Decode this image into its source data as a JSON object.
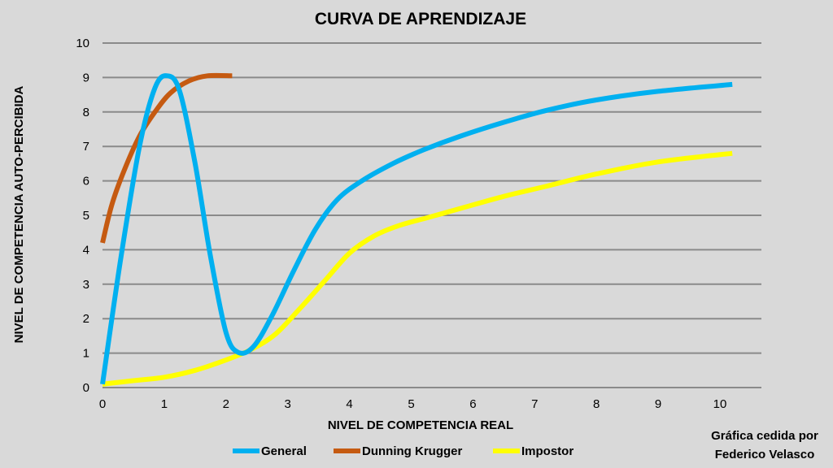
{
  "chart_data": {
    "type": "line",
    "title": "CURVA DE APRENDIZAJE",
    "xlabel": "NIVEL DE COMPETENCIA REAL",
    "ylabel": "NIVEL DE COMPETENCIA AUTO-PERCIBIDA",
    "xlim": [
      0,
      10.7
    ],
    "ylim": [
      0,
      10
    ],
    "x_ticks": [
      "0",
      "1",
      "2",
      "3",
      "4",
      "5",
      "6",
      "7",
      "8",
      "9",
      "10"
    ],
    "y_ticks": [
      "0",
      "1",
      "2",
      "3",
      "4",
      "5",
      "6",
      "7",
      "8",
      "9",
      "10"
    ],
    "grid": true,
    "legend_position": "bottom",
    "series": [
      {
        "name": "General",
        "color": "#00b0f0",
        "points": [
          [
            0,
            0.1
          ],
          [
            0.3,
            3.8
          ],
          [
            0.6,
            7.0
          ],
          [
            0.85,
            8.7
          ],
          [
            1.05,
            9.05
          ],
          [
            1.25,
            8.6
          ],
          [
            1.5,
            6.5
          ],
          [
            1.75,
            3.8
          ],
          [
            2.0,
            1.6
          ],
          [
            2.2,
            1.02
          ],
          [
            2.45,
            1.2
          ],
          [
            2.75,
            2.1
          ],
          [
            3.1,
            3.4
          ],
          [
            3.45,
            4.6
          ],
          [
            3.8,
            5.45
          ],
          [
            4.2,
            6.0
          ],
          [
            4.7,
            6.5
          ],
          [
            5.2,
            6.9
          ],
          [
            5.8,
            7.3
          ],
          [
            6.5,
            7.7
          ],
          [
            7.2,
            8.05
          ],
          [
            8.0,
            8.35
          ],
          [
            9.0,
            8.6
          ],
          [
            10.2,
            8.8
          ]
        ]
      },
      {
        "name": "Dunning Krugger",
        "color": "#c55a11",
        "points": [
          [
            0,
            4.2
          ],
          [
            0.15,
            5.3
          ],
          [
            0.35,
            6.3
          ],
          [
            0.6,
            7.3
          ],
          [
            0.85,
            8.0
          ],
          [
            1.1,
            8.55
          ],
          [
            1.4,
            8.9
          ],
          [
            1.7,
            9.05
          ],
          [
            2.1,
            9.05
          ]
        ]
      },
      {
        "name": "Impostor",
        "color": "#ffff00",
        "points": [
          [
            0,
            0.1
          ],
          [
            0.5,
            0.2
          ],
          [
            1.0,
            0.3
          ],
          [
            1.5,
            0.5
          ],
          [
            2.0,
            0.8
          ],
          [
            2.4,
            1.1
          ],
          [
            2.8,
            1.55
          ],
          [
            3.2,
            2.3
          ],
          [
            3.6,
            3.1
          ],
          [
            4.0,
            3.9
          ],
          [
            4.4,
            4.4
          ],
          [
            4.8,
            4.7
          ],
          [
            5.3,
            4.95
          ],
          [
            5.8,
            5.2
          ],
          [
            6.5,
            5.55
          ],
          [
            7.2,
            5.85
          ],
          [
            8.0,
            6.2
          ],
          [
            9.0,
            6.55
          ],
          [
            10.2,
            6.8
          ]
        ]
      }
    ]
  },
  "credit": {
    "line1": "Gráfica cedida por",
    "line2": "Federico Velasco"
  }
}
